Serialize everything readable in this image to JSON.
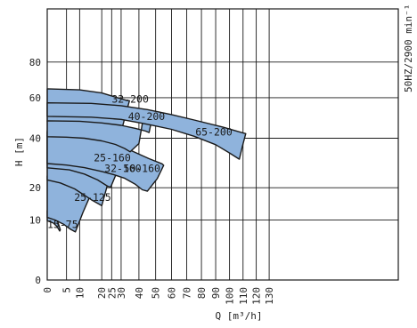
{
  "chart_data": {
    "type": "area",
    "title": "",
    "xlabel": "Q [m³/h]",
    "ylabel": "H [m]",
    "annotation": "50HZ/2900 min⁻¹",
    "x_scale": "power",
    "y_scale": "power",
    "xlim": [
      0,
      130
    ],
    "ylim": [
      0,
      80
    ],
    "x_ticks": [
      0,
      5,
      10,
      20,
      25,
      30,
      40,
      50,
      60,
      70,
      80,
      90,
      100,
      110,
      120,
      130
    ],
    "y_ticks": [
      0,
      10,
      20,
      40,
      60,
      80
    ],
    "grid": true,
    "colors": {
      "fill": "#8fb3dc",
      "stroke": "#1a1a1a",
      "grid": "#1a1a1a"
    },
    "regions": [
      {
        "name": "15-75",
        "label_at": [
          0,
          8.8
        ],
        "outline": [
          [
            0,
            12.6
          ],
          [
            0,
            12.0
          ],
          [
            0.8,
            11.7
          ],
          [
            1.6,
            10.7
          ],
          [
            2.3,
            9.3
          ],
          [
            3.0,
            7.5
          ],
          [
            2.8,
            7.2
          ],
          [
            2.0,
            8.3
          ],
          [
            1.1,
            9.2
          ],
          [
            0,
            9.8
          ],
          [
            0,
            11.0
          ]
        ]
      },
      {
        "name": "25-125",
        "label_at": [
          7.8,
          16.7
        ],
        "outline": [
          [
            0,
            24.3
          ],
          [
            2.0,
            24.1
          ],
          [
            5.0,
            23.2
          ],
          [
            8.0,
            21.7
          ],
          [
            11.2,
            19.6
          ],
          [
            14.4,
            17.0
          ],
          [
            11.4,
            12.1
          ],
          [
            8.3,
            7.0
          ],
          [
            6.5,
            7.6
          ],
          [
            4.0,
            8.9
          ],
          [
            1.5,
            10.0
          ],
          [
            0,
            10.7
          ]
        ]
      },
      {
        "name": "25-160",
        "label_at": [
          16.2,
          31.5
        ],
        "outline": [
          [
            0,
            43.5
          ],
          [
            5.0,
            43.0
          ],
          [
            10.0,
            41.4
          ],
          [
            16.0,
            38.8
          ],
          [
            21.5,
            36.3
          ],
          [
            25.8,
            34.3
          ],
          [
            25.3,
            30.0
          ],
          [
            23.0,
            21.5
          ],
          [
            20.0,
            14.1
          ],
          [
            15.0,
            16.0
          ],
          [
            8.0,
            19.6
          ],
          [
            3.0,
            21.7
          ],
          [
            0,
            22.8
          ]
        ]
      },
      {
        "name": "32-160",
        "label_at": [
          21.3,
          27.2
        ],
        "outline": [
          [
            0,
            42.8
          ],
          [
            6.0,
            42.3
          ],
          [
            12.0,
            40.5
          ],
          [
            18.0,
            38.0
          ],
          [
            24.0,
            35.4
          ],
          [
            30.0,
            32.6
          ],
          [
            31.0,
            32.0
          ],
          [
            28.5,
            27.0
          ],
          [
            24.5,
            20.2
          ],
          [
            23.0,
            20.5
          ],
          [
            18.0,
            22.8
          ],
          [
            12.0,
            25.0
          ],
          [
            6.0,
            26.6
          ],
          [
            0,
            27.4
          ]
        ]
      },
      {
        "name": "50-160",
        "label_at": [
          31.2,
          27.2
        ],
        "outline": [
          [
            0,
            41.3
          ],
          [
            8.0,
            41.0
          ],
          [
            16.0,
            40.0
          ],
          [
            24.0,
            38.2
          ],
          [
            32.0,
            35.8
          ],
          [
            40.0,
            33.0
          ],
          [
            46.0,
            31.1
          ],
          [
            54.0,
            29.0
          ],
          [
            55.0,
            28.4
          ],
          [
            51.0,
            23.3
          ],
          [
            45.0,
            18.8
          ],
          [
            42.0,
            19.3
          ],
          [
            38.0,
            21.2
          ],
          [
            32.0,
            23.4
          ],
          [
            26.0,
            24.8
          ],
          [
            20.0,
            26.0
          ],
          [
            12.0,
            27.5
          ],
          [
            5.0,
            28.5
          ],
          [
            0,
            29.1
          ]
        ]
      },
      {
        "name": "32-200",
        "label_at": [
          25.0,
          59.2
        ],
        "outline": [
          [
            0,
            64.8
          ],
          [
            10.0,
            64.2
          ],
          [
            20.0,
            62.5
          ],
          [
            28.0,
            60.0
          ],
          [
            33.0,
            58.6
          ],
          [
            34.6,
            58.4
          ],
          [
            32.5,
            51.5
          ],
          [
            30.5,
            44.5
          ],
          [
            26.5,
            44.6
          ],
          [
            20.0,
            46.0
          ],
          [
            13.0,
            47.0
          ],
          [
            6.0,
            47.8
          ],
          [
            0,
            48.0
          ]
        ]
      },
      {
        "name": "40-200",
        "label_at": [
          33.8,
          50.4
        ],
        "outline": [
          [
            0,
            48.2
          ],
          [
            10.0,
            48.0
          ],
          [
            20.0,
            47.2
          ],
          [
            30.0,
            46.0
          ],
          [
            38.0,
            44.6
          ],
          [
            44.0,
            43.3
          ],
          [
            46.0,
            42.6
          ],
          [
            48.5,
            52.0
          ],
          [
            46.3,
            51.9
          ],
          [
            42.0,
            46.8
          ],
          [
            40.0,
            37.6
          ],
          [
            35.0,
            34.0
          ],
          [
            32.0,
            35.4
          ],
          [
            27.0,
            37.2
          ],
          [
            20.0,
            38.8
          ],
          [
            12.0,
            40.0
          ],
          [
            5.0,
            40.5
          ],
          [
            0,
            40.7
          ]
        ]
      },
      {
        "name": "65-200",
        "label_at": [
          75.8,
          42.9
        ],
        "outline": [
          [
            0,
            57.3
          ],
          [
            15.0,
            57.0
          ],
          [
            30.0,
            55.8
          ],
          [
            45.0,
            53.8
          ],
          [
            60.0,
            51.3
          ],
          [
            75.0,
            48.6
          ],
          [
            95.0,
            45.2
          ],
          [
            110.0,
            42.4
          ],
          [
            112.0,
            42.1
          ],
          [
            109.5,
            36.3
          ],
          [
            107.2,
            30.9
          ],
          [
            100.0,
            33.5
          ],
          [
            90.0,
            37.1
          ],
          [
            75.0,
            40.9
          ],
          [
            60.0,
            44.1
          ],
          [
            47.0,
            46.2
          ],
          [
            42.0,
            47.0
          ],
          [
            30.0,
            48.9
          ],
          [
            15.0,
            50.0
          ],
          [
            0,
            50.4
          ]
        ]
      }
    ]
  }
}
